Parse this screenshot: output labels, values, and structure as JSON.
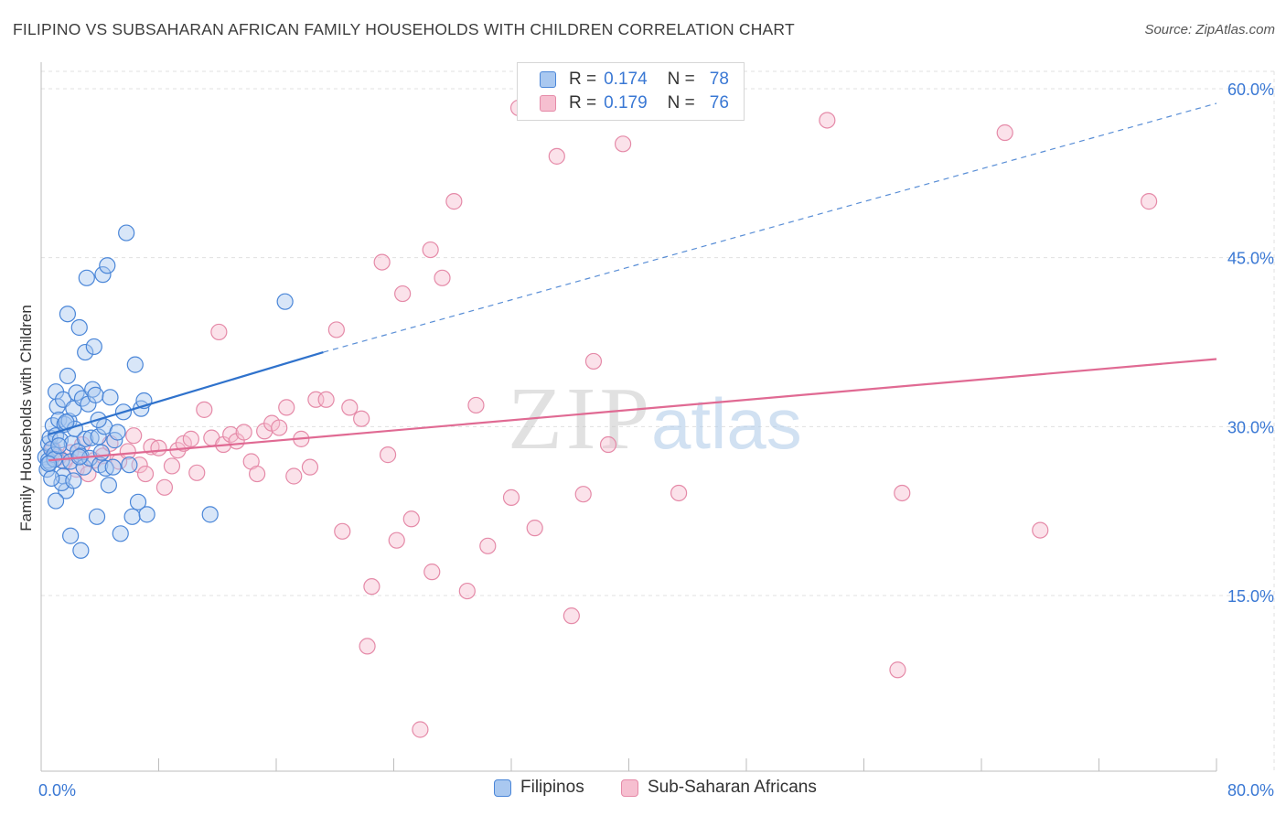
{
  "title": "FILIPINO VS SUBSAHARAN AFRICAN FAMILY HOUSEHOLDS WITH CHILDREN CORRELATION CHART",
  "source": "Source: ZipAtlas.com",
  "watermark": {
    "zip": "ZIP",
    "atlas": "atlas"
  },
  "legend_top": [
    {
      "r_label": "R =",
      "r_value": "0.174",
      "n_label": "N =",
      "n_value": "78"
    },
    {
      "r_label": "R =",
      "r_value": "0.179",
      "n_label": "N =",
      "n_value": "76"
    }
  ],
  "colors": {
    "blue_fill": "#a9c8f0",
    "blue_stroke": "#4a86d8",
    "blue_line": "#2f72cc",
    "pink_fill": "#f6bfd0",
    "pink_stroke": "#e58aa8",
    "pink_line": "#e06a93",
    "tick_label": "#3a78d4",
    "grid": "#e0e0e0"
  },
  "chart_data": {
    "type": "scatter",
    "title": "FILIPINO VS SUBSAHARAN AFRICAN FAMILY HOUSEHOLDS WITH CHILDREN CORRELATION CHART",
    "xlabel": "",
    "ylabel": "Family Households with Children",
    "xlim": [
      0,
      80
    ],
    "ylim": [
      0,
      62
    ],
    "x_tick_labels": [
      "0.0%",
      "80.0%"
    ],
    "y_ticks": [
      15,
      30,
      45,
      60
    ],
    "y_tick_labels": [
      "15.0%",
      "30.0%",
      "45.0%",
      "60.0%"
    ],
    "grid": true,
    "series": [
      {
        "name": "Filipinos",
        "r": 0.174,
        "n": 78,
        "trend_solid": [
          [
            0.5,
            29.3
          ],
          [
            19.2,
            36.6
          ]
        ],
        "trend_dashed": [
          [
            19.2,
            36.6
          ],
          [
            80,
            58.7
          ]
        ],
        "points": [
          [
            0.3,
            27.3
          ],
          [
            0.4,
            26.2
          ],
          [
            0.5,
            28.5
          ],
          [
            0.5,
            27.0
          ],
          [
            0.6,
            29.0
          ],
          [
            0.6,
            26.8
          ],
          [
            0.7,
            28.0
          ],
          [
            0.8,
            30.1
          ],
          [
            0.9,
            27.5
          ],
          [
            1.0,
            33.1
          ],
          [
            1.0,
            29.2
          ],
          [
            1.1,
            31.8
          ],
          [
            1.2,
            30.6
          ],
          [
            1.3,
            28.8
          ],
          [
            1.4,
            27.0
          ],
          [
            1.5,
            25.6
          ],
          [
            1.5,
            32.4
          ],
          [
            1.6,
            30.2
          ],
          [
            1.7,
            24.3
          ],
          [
            1.8,
            40.0
          ],
          [
            1.8,
            34.5
          ],
          [
            1.9,
            30.5
          ],
          [
            2.0,
            26.9
          ],
          [
            2.1,
            28.5
          ],
          [
            2.2,
            31.6
          ],
          [
            2.3,
            29.8
          ],
          [
            2.4,
            33.0
          ],
          [
            2.5,
            27.8
          ],
          [
            2.6,
            38.8
          ],
          [
            2.7,
            27.4
          ],
          [
            2.8,
            32.5
          ],
          [
            2.9,
            26.4
          ],
          [
            3.0,
            28.9
          ],
          [
            3.0,
            36.6
          ],
          [
            3.1,
            43.2
          ],
          [
            3.2,
            32.0
          ],
          [
            3.3,
            27.2
          ],
          [
            3.4,
            29.0
          ],
          [
            3.5,
            33.3
          ],
          [
            3.6,
            37.1
          ],
          [
            3.7,
            32.8
          ],
          [
            3.8,
            22.0
          ],
          [
            3.9,
            29.1
          ],
          [
            4.0,
            26.6
          ],
          [
            4.1,
            27.7
          ],
          [
            4.2,
            43.5
          ],
          [
            4.3,
            30.0
          ],
          [
            4.4,
            26.3
          ],
          [
            4.5,
            44.3
          ],
          [
            4.6,
            24.8
          ],
          [
            4.7,
            32.6
          ],
          [
            4.9,
            26.4
          ],
          [
            5.0,
            28.8
          ],
          [
            5.2,
            29.5
          ],
          [
            5.4,
            20.5
          ],
          [
            5.6,
            31.3
          ],
          [
            5.8,
            47.2
          ],
          [
            6.0,
            26.6
          ],
          [
            6.2,
            22.0
          ],
          [
            6.4,
            35.5
          ],
          [
            6.6,
            23.3
          ],
          [
            6.8,
            31.6
          ],
          [
            7.0,
            32.3
          ],
          [
            7.2,
            22.2
          ],
          [
            2.0,
            20.3
          ],
          [
            2.7,
            19.0
          ],
          [
            1.4,
            25.0
          ],
          [
            0.9,
            27.1
          ],
          [
            1.2,
            28.3
          ],
          [
            1.7,
            30.4
          ],
          [
            2.2,
            25.2
          ],
          [
            2.6,
            27.3
          ],
          [
            3.9,
            30.6
          ],
          [
            1.0,
            23.4
          ],
          [
            0.7,
            25.4
          ],
          [
            16.6,
            41.1
          ],
          [
            11.5,
            22.2
          ],
          [
            0.5,
            26.7
          ]
        ]
      },
      {
        "name": "Sub-Saharan Africans",
        "r": 0.179,
        "n": 76,
        "trend_solid": [
          [
            0.5,
            27.0
          ],
          [
            80,
            36.0
          ]
        ],
        "points": [
          [
            0.8,
            28.0
          ],
          [
            1.2,
            27.3
          ],
          [
            1.6,
            26.9
          ],
          [
            2.0,
            27.7
          ],
          [
            2.4,
            26.2
          ],
          [
            2.8,
            28.4
          ],
          [
            3.2,
            25.8
          ],
          [
            3.6,
            27.0
          ],
          [
            4.2,
            27.4
          ],
          [
            4.7,
            28.5
          ],
          [
            5.3,
            26.9
          ],
          [
            5.9,
            27.8
          ],
          [
            6.3,
            29.2
          ],
          [
            6.7,
            26.6
          ],
          [
            7.1,
            25.8
          ],
          [
            7.5,
            28.2
          ],
          [
            8.0,
            28.1
          ],
          [
            8.4,
            24.6
          ],
          [
            8.9,
            26.5
          ],
          [
            9.3,
            27.9
          ],
          [
            9.7,
            28.5
          ],
          [
            10.2,
            28.9
          ],
          [
            10.6,
            25.9
          ],
          [
            11.1,
            31.5
          ],
          [
            11.6,
            29.0
          ],
          [
            12.1,
            38.4
          ],
          [
            12.4,
            28.4
          ],
          [
            12.9,
            29.3
          ],
          [
            13.3,
            28.7
          ],
          [
            13.8,
            29.5
          ],
          [
            14.3,
            26.9
          ],
          [
            14.7,
            25.8
          ],
          [
            15.2,
            29.6
          ],
          [
            15.7,
            30.3
          ],
          [
            16.2,
            29.9
          ],
          [
            16.7,
            31.7
          ],
          [
            17.2,
            25.6
          ],
          [
            17.7,
            28.9
          ],
          [
            18.3,
            26.4
          ],
          [
            18.7,
            32.4
          ],
          [
            19.4,
            32.4
          ],
          [
            20.1,
            38.6
          ],
          [
            20.5,
            20.7
          ],
          [
            21.0,
            31.7
          ],
          [
            21.8,
            30.7
          ],
          [
            22.5,
            15.8
          ],
          [
            23.2,
            44.6
          ],
          [
            23.6,
            27.5
          ],
          [
            24.2,
            19.9
          ],
          [
            24.6,
            41.8
          ],
          [
            25.2,
            21.8
          ],
          [
            25.8,
            3.1
          ],
          [
            26.5,
            45.7
          ],
          [
            26.6,
            17.1
          ],
          [
            27.3,
            43.2
          ],
          [
            28.1,
            50.0
          ],
          [
            29.0,
            15.4
          ],
          [
            29.6,
            31.9
          ],
          [
            30.4,
            19.4
          ],
          [
            32.0,
            23.7
          ],
          [
            33.6,
            21.0
          ],
          [
            35.1,
            54.0
          ],
          [
            36.1,
            13.2
          ],
          [
            36.9,
            24.0
          ],
          [
            37.6,
            35.8
          ],
          [
            38.6,
            28.4
          ],
          [
            39.6,
            55.1
          ],
          [
            43.4,
            24.1
          ],
          [
            53.5,
            57.2
          ],
          [
            58.3,
            8.4
          ],
          [
            58.6,
            24.1
          ],
          [
            65.6,
            56.1
          ],
          [
            68.0,
            20.8
          ],
          [
            75.4,
            50.0
          ],
          [
            32.5,
            58.3
          ],
          [
            22.2,
            10.5
          ]
        ]
      }
    ]
  },
  "legend_bottom": [
    "Filipinos",
    "Sub-Saharan Africans"
  ]
}
